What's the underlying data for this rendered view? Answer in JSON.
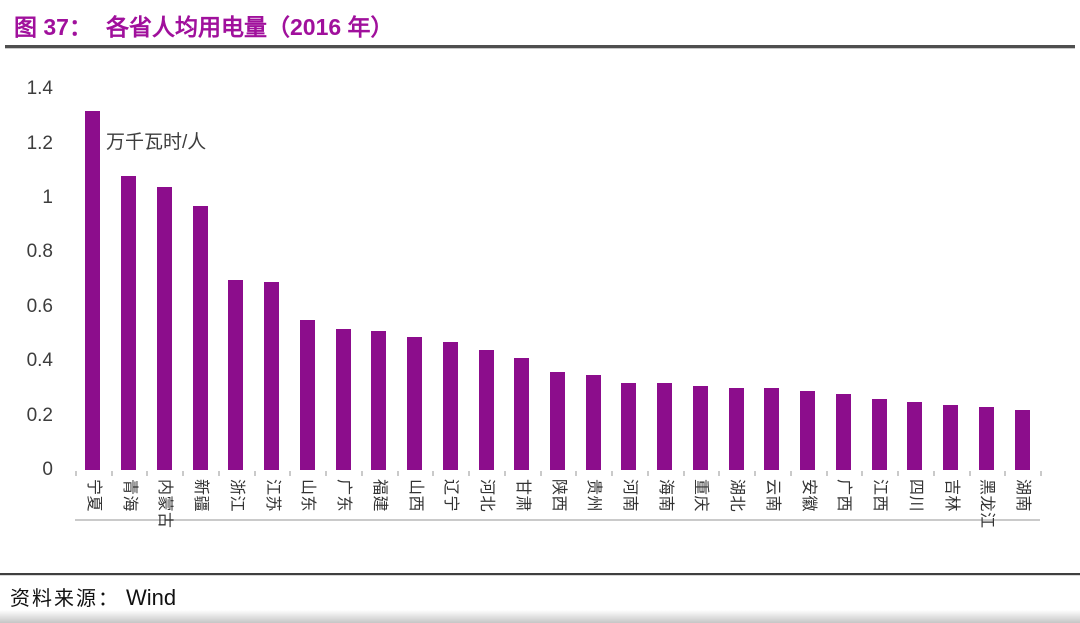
{
  "figure": {
    "label": "图 37：",
    "title": "各省人均用电量（2016 年）",
    "source_prefix": "资料来源：",
    "source_value": "Wind"
  },
  "chart_data": {
    "type": "bar",
    "title": "各省人均用电量（2016 年）",
    "unit_label": "万千瓦时/人",
    "categories": [
      "宁夏",
      "青海",
      "内蒙古",
      "新疆",
      "浙江",
      "江苏",
      "山东",
      "广东",
      "福建",
      "山西",
      "辽宁",
      "河北",
      "甘肃",
      "陕西",
      "贵州",
      "河南",
      "海南",
      "重庆",
      "湖北",
      "云南",
      "安徽",
      "广西",
      "江西",
      "四川",
      "吉林",
      "黑龙江",
      "湖南"
    ],
    "values": [
      1.32,
      1.08,
      1.04,
      0.97,
      0.7,
      0.69,
      0.55,
      0.52,
      0.51,
      0.49,
      0.47,
      0.44,
      0.41,
      0.36,
      0.35,
      0.32,
      0.32,
      0.31,
      0.3,
      0.3,
      0.29,
      0.28,
      0.26,
      0.25,
      0.24,
      0.23,
      0.22
    ],
    "ylim": [
      0,
      1.4
    ],
    "yticks": [
      0,
      0.2,
      0.4,
      0.6,
      0.8,
      1,
      1.2,
      1.4
    ],
    "ytick_labels": [
      "0",
      "0.2",
      "0.4",
      "0.6",
      "0.8",
      "1",
      "1.2",
      "1.4"
    ],
    "x_labels_rotation_deg": 90,
    "grid": false,
    "legend": "none",
    "bar_color": "#8C0D8C"
  },
  "colors": {
    "title_text": "#A0109C",
    "bar": "#8C0D8C",
    "axis_text": "#3D3D3D",
    "axis_line": "#CACACA",
    "title_rule": "#4F4F4F",
    "source_rule": "#3F3F3F",
    "source_text": "#111111"
  }
}
